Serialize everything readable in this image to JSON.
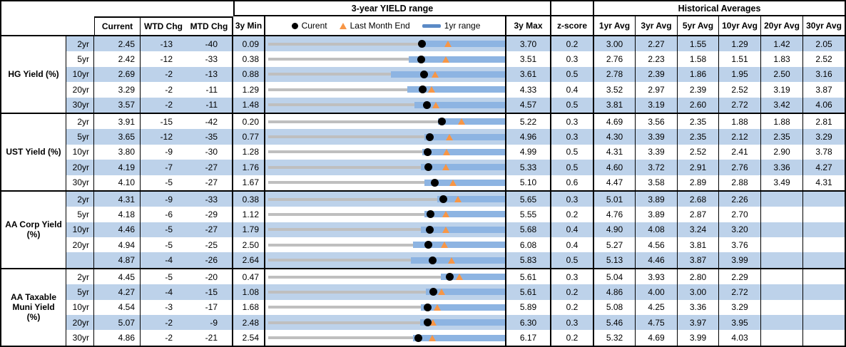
{
  "header": {
    "yield_range_title": "3-year YIELD range",
    "historical_title": "Historical Averages",
    "col_current": "Current",
    "col_wtd_chg": "WTD Chg",
    "col_mtd_chg": "MTD Chg",
    "col_3y_min": "3y Min",
    "col_3y_max": "3y Max",
    "col_z_score": "z-score",
    "avg_cols": [
      "1yr Avg",
      "3yr Avg",
      "5yr Avg",
      "10yr Avg",
      "20yr Avg",
      "30yr Avg"
    ],
    "legend": {
      "current_label": "Curent",
      "last_month_end_label": "Last Month End",
      "range_1yr_label": "1yr range"
    }
  },
  "colors": {
    "stripe_blue": "#BDD2EA",
    "bar_blue": "#8DB4E2",
    "legend_dash_blue": "#5B8AC6",
    "range_gray": "#BFBFBF",
    "marker_black": "#000000",
    "triangle_orange": "#F79646",
    "border_black": "#000000"
  },
  "chart_data": {
    "type": "bullet-range-table",
    "description": "Each row: gray line spans 3y Min to 3y Max; blue bar = 1yr range; black dot = current; orange triangle = last month end.",
    "sections": [
      {
        "label": "HG Yield (%)",
        "rows": [
          {
            "tenor": "2yr",
            "current": "2.45",
            "wtd_chg": "-13",
            "mtd_chg": "-40",
            "min_3y": "0.09",
            "max_3y": "3.70",
            "z_score": "0.2",
            "avgs": [
              "3.00",
              "2.27",
              "1.55",
              "1.29",
              "1.42",
              "2.05"
            ],
            "last_month_end": 2.85,
            "bar_1yr": [
              2.42,
              3.7
            ]
          },
          {
            "tenor": "5yr",
            "current": "2.42",
            "wtd_chg": "-12",
            "mtd_chg": "-33",
            "min_3y": "0.38",
            "max_3y": "3.51",
            "z_score": "0.3",
            "avgs": [
              "2.76",
              "2.23",
              "1.58",
              "1.51",
              "1.83",
              "2.52"
            ],
            "last_month_end": 2.75,
            "bar_1yr": [
              2.25,
              3.51
            ]
          },
          {
            "tenor": "10yr",
            "current": "2.69",
            "wtd_chg": "-2",
            "mtd_chg": "-13",
            "min_3y": "0.88",
            "max_3y": "3.61",
            "z_score": "0.5",
            "avgs": [
              "2.78",
              "2.39",
              "1.86",
              "1.95",
              "2.50",
              "3.16"
            ],
            "last_month_end": 2.82,
            "bar_1yr": [
              2.3,
              3.61
            ]
          },
          {
            "tenor": "20yr",
            "current": "3.29",
            "wtd_chg": "-2",
            "mtd_chg": "-11",
            "min_3y": "1.29",
            "max_3y": "4.33",
            "z_score": "0.4",
            "avgs": [
              "3.52",
              "2.97",
              "2.39",
              "2.52",
              "3.19",
              "3.87"
            ],
            "last_month_end": 3.4,
            "bar_1yr": [
              3.09,
              4.33
            ]
          },
          {
            "tenor": "30yr",
            "current": "3.57",
            "wtd_chg": "-2",
            "mtd_chg": "-11",
            "min_3y": "1.48",
            "max_3y": "4.57",
            "z_score": "0.5",
            "avgs": [
              "3.81",
              "3.19",
              "2.60",
              "2.72",
              "3.42",
              "4.06"
            ],
            "last_month_end": 3.68,
            "bar_1yr": [
              3.4,
              4.57
            ]
          }
        ]
      },
      {
        "label": "UST Yield (%)",
        "rows": [
          {
            "tenor": "2yr",
            "current": "3.91",
            "wtd_chg": "-15",
            "mtd_chg": "-42",
            "min_3y": "0.20",
            "max_3y": "5.22",
            "z_score": "0.3",
            "avgs": [
              "4.69",
              "3.56",
              "2.35",
              "1.88",
              "1.88",
              "2.81"
            ],
            "last_month_end": 4.33,
            "bar_1yr": [
              3.83,
              5.22
            ]
          },
          {
            "tenor": "5yr",
            "current": "3.65",
            "wtd_chg": "-12",
            "mtd_chg": "-35",
            "min_3y": "0.77",
            "max_3y": "4.96",
            "z_score": "0.3",
            "avgs": [
              "4.30",
              "3.39",
              "2.35",
              "2.12",
              "2.35",
              "3.29"
            ],
            "last_month_end": 4.0,
            "bar_1yr": [
              3.56,
              4.96
            ]
          },
          {
            "tenor": "10yr",
            "current": "3.80",
            "wtd_chg": "-9",
            "mtd_chg": "-30",
            "min_3y": "1.28",
            "max_3y": "4.99",
            "z_score": "0.5",
            "avgs": [
              "4.31",
              "3.39",
              "2.52",
              "2.41",
              "2.90",
              "3.78"
            ],
            "last_month_end": 4.1,
            "bar_1yr": [
              3.71,
              4.99
            ]
          },
          {
            "tenor": "20yr",
            "current": "4.19",
            "wtd_chg": "-7",
            "mtd_chg": "-27",
            "min_3y": "1.76",
            "max_3y": "5.33",
            "z_score": "0.5",
            "avgs": [
              "4.60",
              "3.72",
              "2.91",
              "2.76",
              "3.36",
              "4.27"
            ],
            "last_month_end": 4.46,
            "bar_1yr": [
              4.08,
              5.33
            ]
          },
          {
            "tenor": "30yr",
            "current": "4.10",
            "wtd_chg": "-5",
            "mtd_chg": "-27",
            "min_3y": "1.67",
            "max_3y": "5.10",
            "z_score": "0.6",
            "avgs": [
              "4.47",
              "3.58",
              "2.89",
              "2.88",
              "3.49",
              "4.31"
            ],
            "last_month_end": 4.37,
            "bar_1yr": [
              3.95,
              5.1
            ]
          }
        ]
      },
      {
        "label": "AA Corp Yield\n(%)",
        "rows": [
          {
            "tenor": "2yr",
            "current": "4.31",
            "wtd_chg": "-9",
            "mtd_chg": "-33",
            "min_3y": "0.38",
            "max_3y": "5.65",
            "z_score": "0.3",
            "avgs": [
              "5.01",
              "3.89",
              "2.68",
              "2.26",
              "",
              ""
            ],
            "last_month_end": 4.64,
            "bar_1yr": [
              4.17,
              5.65
            ]
          },
          {
            "tenor": "5yr",
            "current": "4.18",
            "wtd_chg": "-6",
            "mtd_chg": "-29",
            "min_3y": "1.12",
            "max_3y": "5.55",
            "z_score": "0.2",
            "avgs": [
              "4.76",
              "3.89",
              "2.87",
              "2.70",
              "",
              ""
            ],
            "last_month_end": 4.47,
            "bar_1yr": [
              4.07,
              5.55
            ]
          },
          {
            "tenor": "10yr",
            "current": "4.46",
            "wtd_chg": "-5",
            "mtd_chg": "-27",
            "min_3y": "1.79",
            "max_3y": "5.68",
            "z_score": "0.4",
            "avgs": [
              "4.90",
              "4.08",
              "3.24",
              "3.20",
              "",
              ""
            ],
            "last_month_end": 4.73,
            "bar_1yr": [
              4.32,
              5.68
            ]
          },
          {
            "tenor": "20yr",
            "current": "4.94",
            "wtd_chg": "-5",
            "mtd_chg": "-25",
            "min_3y": "2.50",
            "max_3y": "6.08",
            "z_score": "0.4",
            "avgs": [
              "5.27",
              "4.56",
              "3.81",
              "3.76",
              "",
              ""
            ],
            "last_month_end": 5.19,
            "bar_1yr": [
              4.71,
              6.08
            ]
          },
          {
            "tenor": "",
            "current": "4.87",
            "wtd_chg": "-4",
            "mtd_chg": "-26",
            "min_3y": "2.64",
            "max_3y": "5.83",
            "z_score": "0.5",
            "avgs": [
              "5.13",
              "4.46",
              "3.87",
              "3.99",
              "",
              ""
            ],
            "last_month_end": 5.13,
            "bar_1yr": [
              4.58,
              5.83
            ]
          }
        ]
      },
      {
        "label": "AA Taxable\nMuni Yield\n(%)",
        "rows": [
          {
            "tenor": "2yr",
            "current": "4.45",
            "wtd_chg": "-5",
            "mtd_chg": "-20",
            "min_3y": "0.47",
            "max_3y": "5.61",
            "z_score": "0.3",
            "avgs": [
              "5.04",
              "3.93",
              "2.80",
              "2.29",
              "",
              ""
            ],
            "last_month_end": 4.65,
            "bar_1yr": [
              4.24,
              5.61
            ]
          },
          {
            "tenor": "5yr",
            "current": "4.27",
            "wtd_chg": "-4",
            "mtd_chg": "-15",
            "min_3y": "1.08",
            "max_3y": "5.61",
            "z_score": "0.2",
            "avgs": [
              "4.86",
              "4.00",
              "3.00",
              "2.72",
              "",
              ""
            ],
            "last_month_end": 4.42,
            "bar_1yr": [
              4.12,
              5.61
            ]
          },
          {
            "tenor": "10yr",
            "current": "4.54",
            "wtd_chg": "-3",
            "mtd_chg": "-17",
            "min_3y": "1.68",
            "max_3y": "5.89",
            "z_score": "0.2",
            "avgs": [
              "5.08",
              "4.25",
              "3.36",
              "3.29",
              "",
              ""
            ],
            "last_month_end": 4.71,
            "bar_1yr": [
              4.42,
              5.89
            ]
          },
          {
            "tenor": "20yr",
            "current": "5.07",
            "wtd_chg": "-2",
            "mtd_chg": "-9",
            "min_3y": "2.48",
            "max_3y": "6.30",
            "z_score": "0.3",
            "avgs": [
              "5.46",
              "4.75",
              "3.97",
              "3.95",
              "",
              ""
            ],
            "last_month_end": 5.16,
            "bar_1yr": [
              4.95,
              6.3
            ]
          },
          {
            "tenor": "30yr",
            "current": "4.86",
            "wtd_chg": "-2",
            "mtd_chg": "-21",
            "min_3y": "2.54",
            "max_3y": "6.17",
            "z_score": "0.2",
            "avgs": [
              "5.32",
              "4.69",
              "3.99",
              "4.03",
              "",
              ""
            ],
            "last_month_end": 5.07,
            "bar_1yr": [
              4.78,
              6.17
            ]
          }
        ]
      }
    ]
  }
}
